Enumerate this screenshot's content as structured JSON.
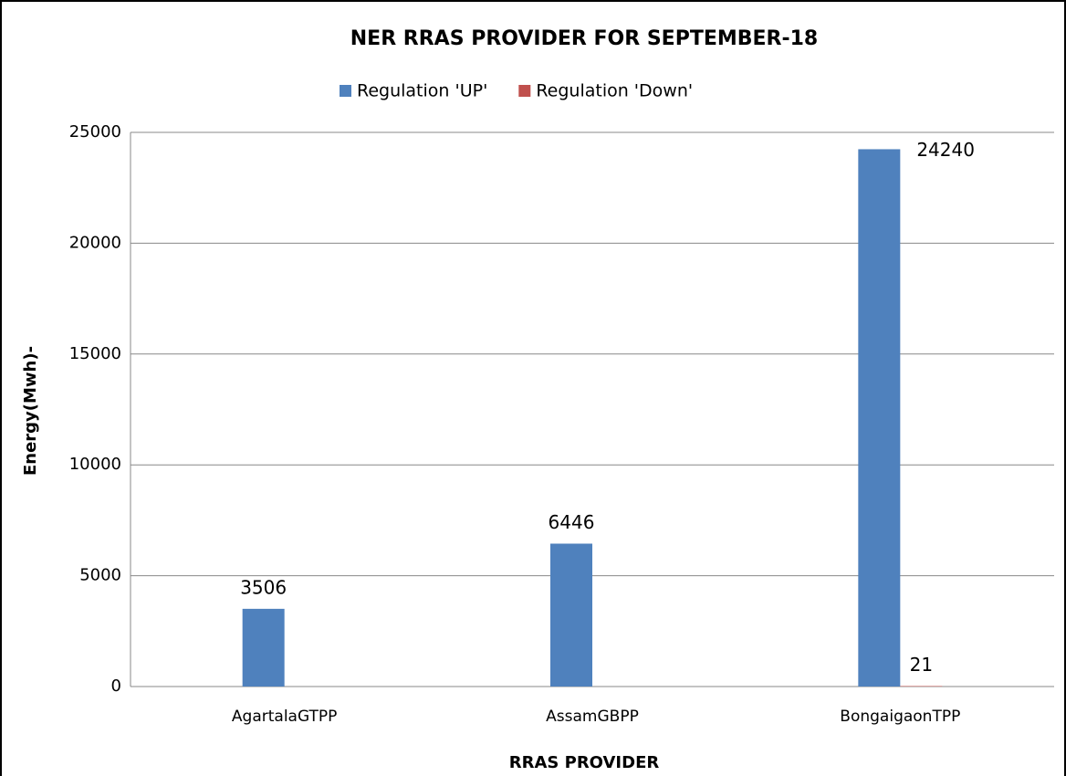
{
  "chart_data": {
    "type": "bar",
    "title": "NER RRAS PROVIDER FOR SEPTEMBER-18",
    "x_label": "RRAS PROVIDER",
    "y_label": "Energy(Mwh)-",
    "categories": [
      "AgartalaGTPP",
      "AssamGBPP",
      "BongaigaonTPP"
    ],
    "series": [
      {
        "name": "Regulation 'UP'",
        "color": "#4f81bd",
        "values": [
          3506,
          6446,
          24240
        ]
      },
      {
        "name": "Regulation 'Down'",
        "color": "#c0504d",
        "values": [
          null,
          null,
          21
        ]
      }
    ],
    "ylim": [
      0,
      25000
    ],
    "yticks": [
      0,
      5000,
      10000,
      15000,
      20000,
      25000
    ],
    "grid": true,
    "legend": "top"
  }
}
